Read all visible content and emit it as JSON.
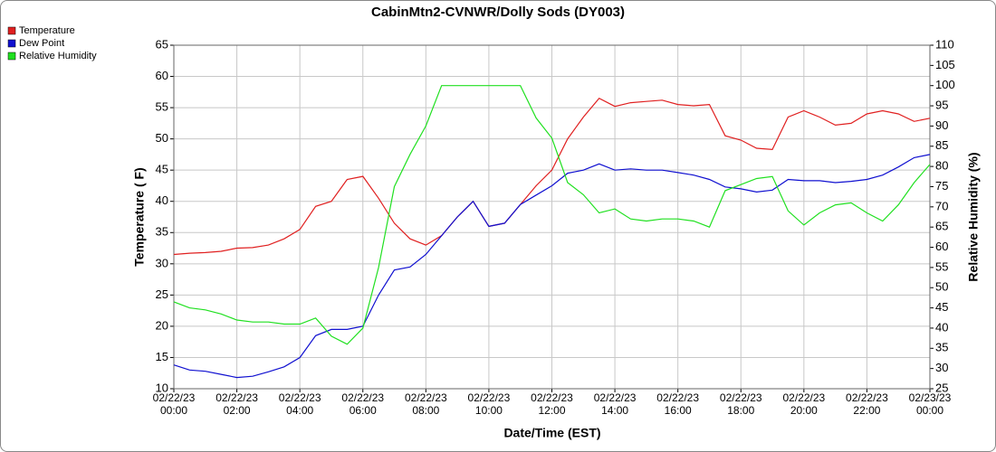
{
  "chart_data": {
    "type": "line",
    "title": "CabinMtn2-CVNWR/Dolly Sods (DY003)",
    "xlabel": "Date/Time (EST)",
    "ylabel": "Temperature ( F)",
    "y2label": "Relative Humidity (%)",
    "grid": true,
    "legend": "top-left",
    "x": [
      "2023-02-22 00:00",
      "2023-02-22 00:30",
      "2023-02-22 01:00",
      "2023-02-22 01:30",
      "2023-02-22 02:00",
      "2023-02-22 02:30",
      "2023-02-22 03:00",
      "2023-02-22 03:30",
      "2023-02-22 04:00",
      "2023-02-22 04:30",
      "2023-02-22 05:00",
      "2023-02-22 05:30",
      "2023-02-22 06:00",
      "2023-02-22 06:30",
      "2023-02-22 07:00",
      "2023-02-22 07:30",
      "2023-02-22 08:00",
      "2023-02-22 08:30",
      "2023-02-22 09:00",
      "2023-02-22 09:30",
      "2023-02-22 10:00",
      "2023-02-22 10:30",
      "2023-02-22 11:00",
      "2023-02-22 11:30",
      "2023-02-22 12:00",
      "2023-02-22 12:30",
      "2023-02-22 13:00",
      "2023-02-22 13:30",
      "2023-02-22 14:00",
      "2023-02-22 14:30",
      "2023-02-22 15:00",
      "2023-02-22 15:30",
      "2023-02-22 16:00",
      "2023-02-22 16:30",
      "2023-02-22 17:00",
      "2023-02-22 17:30",
      "2023-02-22 18:00",
      "2023-02-22 18:30",
      "2023-02-22 19:00",
      "2023-02-22 19:30",
      "2023-02-22 20:00",
      "2023-02-22 20:30",
      "2023-02-22 21:00",
      "2023-02-22 21:30",
      "2023-02-22 22:00",
      "2023-02-22 22:30",
      "2023-02-22 23:00",
      "2023-02-22 23:30",
      "2023-02-23 00:00"
    ],
    "xlim": [
      "2023-02-22 00:00",
      "2023-02-23 00:00"
    ],
    "xticks": [
      {
        "value": "2023-02-22 00:00",
        "label": "02/22/23 00:00"
      },
      {
        "value": "2023-02-22 02:00",
        "label": "02/22/23 02:00"
      },
      {
        "value": "2023-02-22 04:00",
        "label": "02/22/23 04:00"
      },
      {
        "value": "2023-02-22 06:00",
        "label": "02/22/23 06:00"
      },
      {
        "value": "2023-02-22 08:00",
        "label": "02/22/23 08:00"
      },
      {
        "value": "2023-02-22 10:00",
        "label": "02/22/23 10:00"
      },
      {
        "value": "2023-02-22 12:00",
        "label": "02/22/23 12:00"
      },
      {
        "value": "2023-02-22 14:00",
        "label": "02/22/23 14:00"
      },
      {
        "value": "2023-02-22 16:00",
        "label": "02/22/23 16:00"
      },
      {
        "value": "2023-02-22 18:00",
        "label": "02/22/23 18:00"
      },
      {
        "value": "2023-02-22 20:00",
        "label": "02/22/23 20:00"
      },
      {
        "value": "2023-02-22 22:00",
        "label": "02/22/23 22:00"
      },
      {
        "value": "2023-02-23 00:00",
        "label": "02/23/23 00:00"
      }
    ],
    "ylim": [
      10,
      65
    ],
    "yticks": [
      10,
      15,
      20,
      25,
      30,
      35,
      40,
      45,
      50,
      55,
      60,
      65
    ],
    "y2lim": [
      25,
      110
    ],
    "y2ticks": [
      25,
      30,
      35,
      40,
      45,
      50,
      55,
      60,
      65,
      70,
      75,
      80,
      85,
      90,
      95,
      100,
      105,
      110
    ],
    "series": [
      {
        "name": "Temperature",
        "color": "#e02020",
        "axis": "y",
        "values": [
          31.5,
          31.7,
          31.8,
          32.0,
          32.5,
          32.6,
          33.0,
          34.0,
          35.5,
          39.2,
          40.0,
          43.5,
          44.0,
          40.5,
          36.5,
          34.0,
          33.0,
          34.5,
          37.5,
          40.0,
          36.0,
          36.5,
          39.5,
          42.5,
          45.0,
          50.0,
          53.5,
          56.5,
          55.2,
          55.8,
          56.0,
          56.2,
          55.5,
          55.3,
          55.5,
          50.5,
          49.8,
          48.5,
          48.3,
          53.5,
          54.5,
          53.5,
          52.2,
          52.5,
          54.0,
          54.5,
          54.0,
          52.8,
          53.3
        ]
      },
      {
        "name": "Dew Point",
        "color": "#1010d0",
        "axis": "y",
        "values": [
          13.8,
          13.0,
          12.8,
          12.3,
          11.8,
          12.0,
          12.7,
          13.5,
          15.0,
          18.5,
          19.5,
          19.5,
          20.0,
          25.0,
          29.0,
          29.5,
          31.5,
          34.5,
          37.5,
          40.0,
          36.0,
          36.5,
          39.5,
          41.0,
          42.5,
          44.5,
          45.0,
          46.0,
          45.0,
          45.2,
          45.0,
          45.0,
          44.6,
          44.2,
          43.5,
          42.3,
          42.0,
          41.5,
          41.8,
          43.5,
          43.3,
          43.3,
          43.0,
          43.2,
          43.5,
          44.2,
          45.5,
          47.0,
          47.5
        ]
      },
      {
        "name": "Relative Humidity",
        "color": "#20e020",
        "axis": "y2",
        "values": [
          46.5,
          45,
          44.5,
          43.5,
          42,
          41.5,
          41.5,
          41,
          41,
          42.5,
          38,
          36,
          40,
          55,
          75,
          83,
          90,
          100,
          100,
          100,
          100,
          100,
          100,
          92,
          87,
          76,
          73,
          68.5,
          69.5,
          67,
          66.5,
          67,
          67,
          66.5,
          65,
          74,
          75.5,
          77,
          77.5,
          69,
          65.5,
          68.5,
          70.5,
          71,
          68.5,
          66.5,
          70.5,
          76,
          80.5
        ]
      }
    ]
  }
}
